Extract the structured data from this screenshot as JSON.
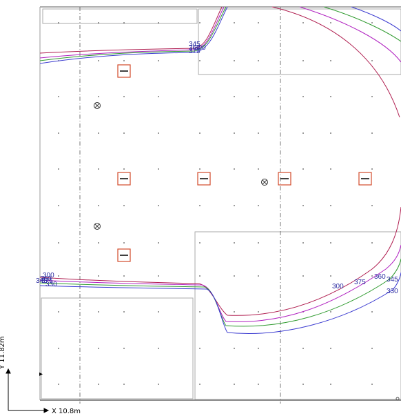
{
  "axes": {
    "x_label": "X 10.8m",
    "y_label": "Y 11.82m"
  },
  "colors": {
    "contour_300": "#b01e50",
    "contour_330": "#3a3ad0",
    "contour_345": "#2e9a2e",
    "contour_360": "#b020c0",
    "contour_375": "#c0a030",
    "luminaire": "#d24a2a",
    "grid_dots": "#555555",
    "room_outline": "#aaaaaa"
  },
  "contours": {
    "top_left_labels": [
      "345",
      "360",
      "375",
      "300"
    ],
    "bottom_left_labels": [
      "300",
      "360",
      "375",
      "345",
      "330"
    ],
    "right_labels": [
      "300",
      "375",
      "360",
      "345",
      "330"
    ]
  },
  "luminaires": [
    {
      "type": "linear"
    },
    {
      "type": "linear"
    },
    {
      "type": "linear"
    },
    {
      "type": "linear"
    },
    {
      "type": "linear"
    },
    {
      "type": "linear"
    }
  ],
  "emergency_lights": [
    {
      "type": "crossed-circle"
    },
    {
      "type": "crossed-circle"
    },
    {
      "type": "crossed-circle"
    }
  ]
}
